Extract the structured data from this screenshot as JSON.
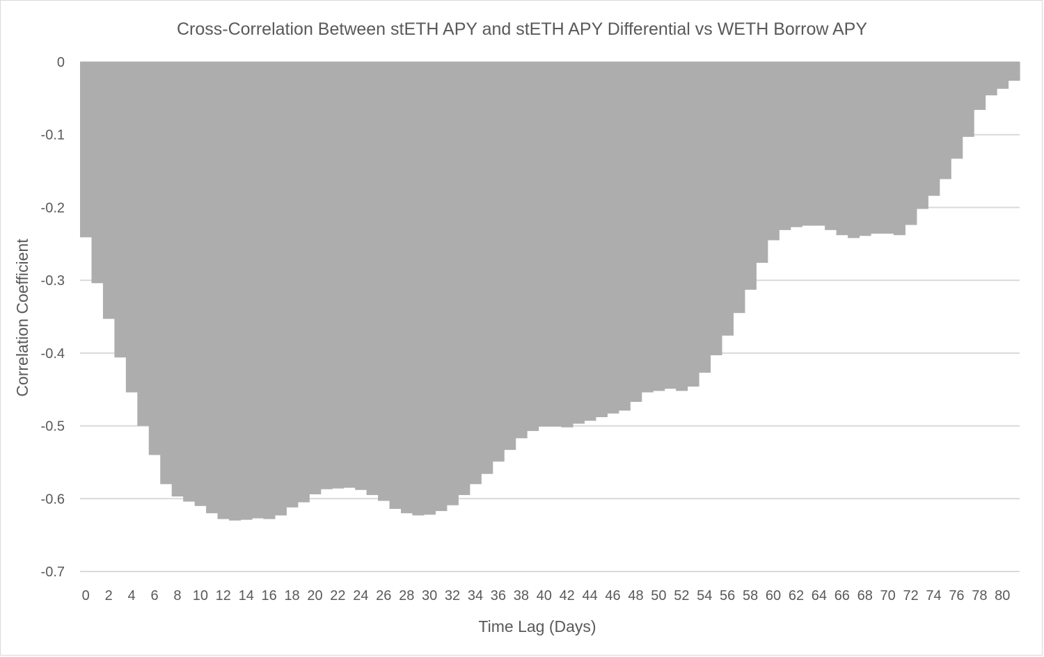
{
  "colors": {
    "bar_fill": "#adadad",
    "gridline": "#d9d9d9",
    "text": "#595959",
    "background": "#ffffff"
  },
  "chart_data": {
    "type": "bar",
    "title": "Cross-Correlation Between stETH APY and stETH APY Differential vs WETH Borrow APY",
    "xlabel": "Time Lag (Days)",
    "ylabel": "Correlation Coefficient",
    "ylim": [
      -0.7,
      0
    ],
    "yticks": [
      0,
      -0.1,
      -0.2,
      -0.3,
      -0.4,
      -0.5,
      -0.6,
      -0.7
    ],
    "ytick_labels": [
      "0",
      "-0.1",
      "-0.2",
      "-0.3",
      "-0.4",
      "-0.5",
      "-0.6",
      "-0.7"
    ],
    "xtick_labels": [
      "0",
      "2",
      "4",
      "6",
      "8",
      "10",
      "12",
      "14",
      "16",
      "18",
      "20",
      "22",
      "24",
      "26",
      "28",
      "30",
      "32",
      "34",
      "36",
      "38",
      "40",
      "42",
      "44",
      "46",
      "48",
      "50",
      "52",
      "54",
      "56",
      "58",
      "60",
      "62",
      "64",
      "66",
      "68",
      "70",
      "72",
      "74",
      "76",
      "78",
      "80"
    ],
    "grid": true,
    "legend": "none",
    "categories": [
      0,
      1,
      2,
      3,
      4,
      5,
      6,
      7,
      8,
      9,
      10,
      11,
      12,
      13,
      14,
      15,
      16,
      17,
      18,
      19,
      20,
      21,
      22,
      23,
      24,
      25,
      26,
      27,
      28,
      29,
      30,
      31,
      32,
      33,
      34,
      35,
      36,
      37,
      38,
      39,
      40,
      41,
      42,
      43,
      44,
      45,
      46,
      47,
      48,
      49,
      50,
      51,
      52,
      53,
      54,
      55,
      56,
      57,
      58,
      59,
      60,
      61,
      62,
      63,
      64,
      65,
      66,
      67,
      68,
      69,
      70,
      71,
      72,
      73,
      74,
      75,
      76,
      77,
      78,
      79,
      80,
      81
    ],
    "values": [
      -0.241,
      -0.304,
      -0.353,
      -0.406,
      -0.454,
      -0.5,
      -0.54,
      -0.58,
      -0.597,
      -0.604,
      -0.61,
      -0.62,
      -0.628,
      -0.63,
      -0.629,
      -0.627,
      -0.628,
      -0.623,
      -0.612,
      -0.605,
      -0.594,
      -0.587,
      -0.586,
      -0.585,
      -0.588,
      -0.595,
      -0.603,
      -0.614,
      -0.62,
      -0.623,
      -0.622,
      -0.617,
      -0.609,
      -0.595,
      -0.58,
      -0.566,
      -0.549,
      -0.533,
      -0.517,
      -0.507,
      -0.501,
      -0.501,
      -0.502,
      -0.497,
      -0.493,
      -0.488,
      -0.483,
      -0.479,
      -0.467,
      -0.454,
      -0.452,
      -0.449,
      -0.452,
      -0.446,
      -0.427,
      -0.403,
      -0.376,
      -0.345,
      -0.313,
      -0.276,
      -0.245,
      -0.231,
      -0.227,
      -0.225,
      -0.225,
      -0.231,
      -0.238,
      -0.242,
      -0.239,
      -0.236,
      -0.236,
      -0.238,
      -0.224,
      -0.202,
      -0.184,
      -0.161,
      -0.133,
      -0.103,
      -0.066,
      -0.046,
      -0.037,
      -0.026
    ]
  }
}
